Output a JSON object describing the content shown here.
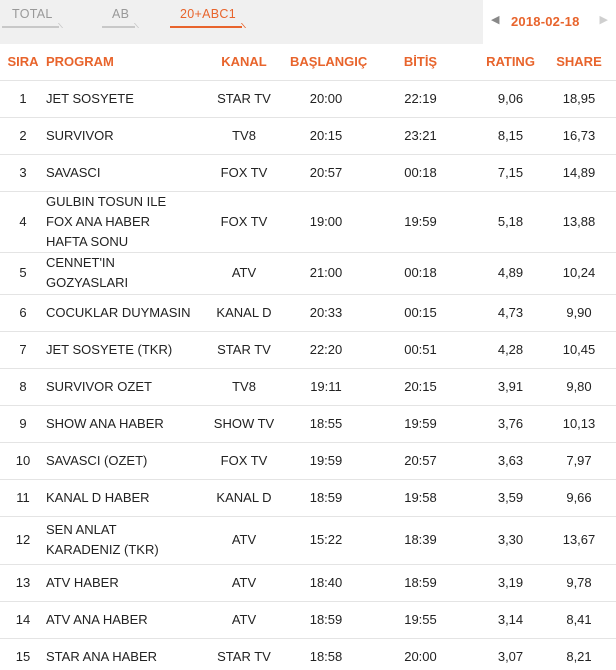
{
  "tabs": [
    {
      "label": "TOTAL",
      "active": false
    },
    {
      "label": "AB",
      "active": false
    },
    {
      "label": "20+ABC1",
      "active": true
    }
  ],
  "date_nav": {
    "date": "2018-02-18",
    "prev_icon": "chevron-left-icon",
    "next_icon": "chevron-right-icon"
  },
  "colors": {
    "accent": "#e8642c",
    "header_bg": "#f0f0f0",
    "divider": "#e4e4e4"
  },
  "table": {
    "headers": {
      "rank": "SIRA",
      "program": "PROGRAM",
      "channel": "KANAL",
      "start": "BAŞLANGIÇ",
      "end": "BİTİŞ",
      "rating": "RATING",
      "share": "SHARE"
    },
    "rows": [
      {
        "rank": "1",
        "program": "JET SOSYETE",
        "channel": "STAR TV",
        "start": "20:00",
        "end": "22:19",
        "rating": "9,06",
        "share": "18,95"
      },
      {
        "rank": "2",
        "program": "SURVIVOR",
        "channel": "TV8",
        "start": "20:15",
        "end": "23:21",
        "rating": "8,15",
        "share": "16,73"
      },
      {
        "rank": "3",
        "program": "SAVASCI",
        "channel": "FOX TV",
        "start": "20:57",
        "end": "00:18",
        "rating": "7,15",
        "share": "14,89"
      },
      {
        "rank": "4",
        "program": "GULBIN TOSUN ILE FOX ANA HABER HAFTA SONU",
        "channel": "FOX TV",
        "start": "19:00",
        "end": "19:59",
        "rating": "5,18",
        "share": "13,88"
      },
      {
        "rank": "5",
        "program": "CENNET'IN GOZYASLARI",
        "channel": "ATV",
        "start": "21:00",
        "end": "00:18",
        "rating": "4,89",
        "share": "10,24"
      },
      {
        "rank": "6",
        "program": "COCUKLAR DUYMASIN",
        "channel": "KANAL D",
        "start": "20:33",
        "end": "00:15",
        "rating": "4,73",
        "share": "9,90"
      },
      {
        "rank": "7",
        "program": "JET SOSYETE (TKR)",
        "channel": "STAR TV",
        "start": "22:20",
        "end": "00:51",
        "rating": "4,28",
        "share": "10,45"
      },
      {
        "rank": "8",
        "program": "SURVIVOR OZET",
        "channel": "TV8",
        "start": "19:11",
        "end": "20:15",
        "rating": "3,91",
        "share": "9,80"
      },
      {
        "rank": "9",
        "program": "SHOW ANA HABER",
        "channel": "SHOW TV",
        "start": "18:55",
        "end": "19:59",
        "rating": "3,76",
        "share": "10,13"
      },
      {
        "rank": "10",
        "program": "SAVASCI (OZET)",
        "channel": "FOX TV",
        "start": "19:59",
        "end": "20:57",
        "rating": "3,63",
        "share": "7,97"
      },
      {
        "rank": "11",
        "program": "KANAL D HABER",
        "channel": "KANAL D",
        "start": "18:59",
        "end": "19:58",
        "rating": "3,59",
        "share": "9,66"
      },
      {
        "rank": "12",
        "program": "SEN ANLAT KARADENIZ (TKR)",
        "channel": "ATV",
        "start": "15:22",
        "end": "18:39",
        "rating": "3,30",
        "share": "13,67"
      },
      {
        "rank": "13",
        "program": "ATV HABER",
        "channel": "ATV",
        "start": "18:40",
        "end": "18:59",
        "rating": "3,19",
        "share": "9,78"
      },
      {
        "rank": "14",
        "program": "ATV ANA HABER",
        "channel": "ATV",
        "start": "18:59",
        "end": "19:55",
        "rating": "3,14",
        "share": "8,41"
      },
      {
        "rank": "15",
        "program": "STAR ANA HABER",
        "channel": "STAR TV",
        "start": "18:58",
        "end": "20:00",
        "rating": "3,07",
        "share": "8,21"
      }
    ]
  }
}
